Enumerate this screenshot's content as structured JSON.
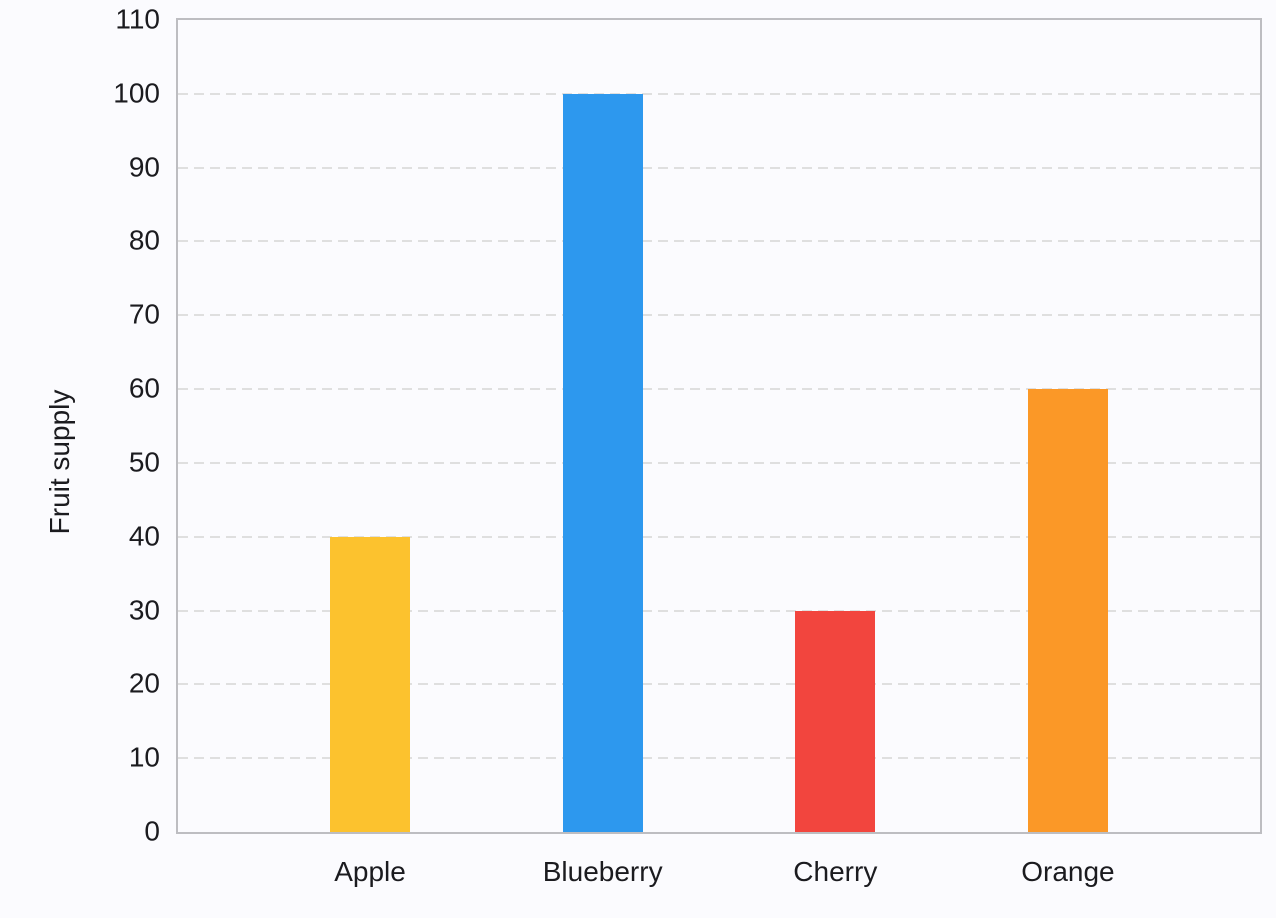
{
  "chart_data": {
    "type": "bar",
    "title": "",
    "xlabel": "",
    "ylabel": "Fruit supply",
    "categories": [
      "Apple",
      "Blueberry",
      "Cherry",
      "Orange"
    ],
    "values": [
      40,
      100,
      30,
      60
    ],
    "bar_colors": [
      "#FCC22E",
      "#2D98EE",
      "#F2453E",
      "#FB9827"
    ],
    "ylim": [
      0,
      110
    ],
    "yticks": [
      0,
      10,
      20,
      30,
      40,
      50,
      60,
      70,
      80,
      90,
      100,
      110
    ],
    "ytick_labels": [
      "0",
      "10",
      "20",
      "30",
      "40",
      "50",
      "60",
      "70",
      "80",
      "90",
      "100",
      "110"
    ],
    "grid": "horizontal-dashed",
    "legend_position": "none"
  },
  "colors": {
    "background": "#FBFBFE",
    "plot_border": "#BDBDC1",
    "gridline": "#DFDFDF",
    "text": "#1B1B1F"
  }
}
